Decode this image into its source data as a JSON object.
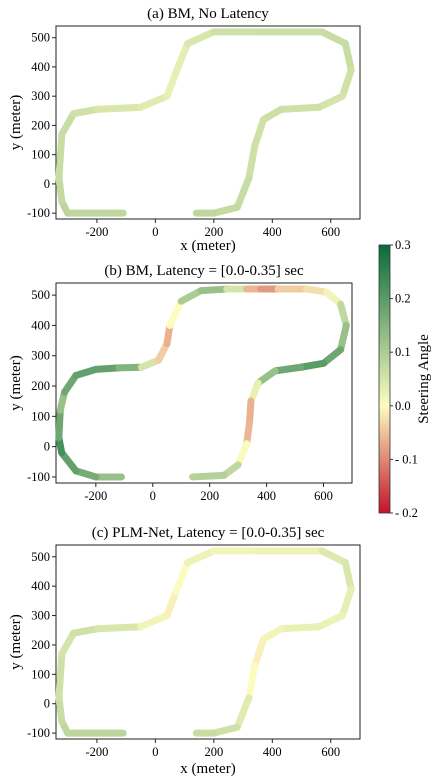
{
  "colors": {
    "high": "#0a6b3a",
    "mid": "#fdfcc0",
    "low": "#c0142a"
  },
  "chart_data": [
    {
      "type": "line",
      "title": "(a)  BM, No Latency",
      "xlabel": "x (meter)",
      "ylabel": "y (meter)",
      "xticks": [
        "-200",
        "0",
        "200",
        "400",
        "600"
      ],
      "yticks": [
        "-100",
        "0",
        "100",
        "200",
        "300",
        "400",
        "500"
      ],
      "xlim": [
        -340,
        700
      ],
      "ylim": [
        -120,
        540
      ],
      "series": [
        {
          "name": "",
          "points": [
            {
              "x": -110,
              "y": -100,
              "steer": 0.07
            },
            {
              "x": -300,
              "y": -100,
              "steer": 0.08
            },
            {
              "x": -320,
              "y": -60,
              "steer": 0.08
            },
            {
              "x": -330,
              "y": 20,
              "steer": 0.06
            },
            {
              "x": -320,
              "y": 170,
              "steer": 0.07
            },
            {
              "x": -280,
              "y": 240,
              "steer": 0.06
            },
            {
              "x": -200,
              "y": 255,
              "steer": 0.05
            },
            {
              "x": -50,
              "y": 262,
              "steer": 0.04
            },
            {
              "x": 40,
              "y": 300,
              "steer": 0.03
            },
            {
              "x": 70,
              "y": 380,
              "steer": 0.02
            },
            {
              "x": 110,
              "y": 480,
              "steer": 0.04
            },
            {
              "x": 200,
              "y": 520,
              "steer": 0.05
            },
            {
              "x": 350,
              "y": 520,
              "steer": 0.06
            },
            {
              "x": 570,
              "y": 520,
              "steer": 0.06
            },
            {
              "x": 650,
              "y": 480,
              "steer": 0.07
            },
            {
              "x": 670,
              "y": 390,
              "steer": 0.06
            },
            {
              "x": 640,
              "y": 300,
              "steer": 0.05
            },
            {
              "x": 560,
              "y": 262,
              "steer": 0.05
            },
            {
              "x": 430,
              "y": 255,
              "steer": 0.06
            },
            {
              "x": 370,
              "y": 220,
              "steer": 0.06
            },
            {
              "x": 340,
              "y": 130,
              "steer": 0.05
            },
            {
              "x": 320,
              "y": 20,
              "steer": 0.06
            },
            {
              "x": 280,
              "y": -80,
              "steer": 0.07
            },
            {
              "x": 200,
              "y": -100,
              "steer": 0.07
            },
            {
              "x": 140,
              "y": -100,
              "steer": 0.08
            }
          ]
        }
      ]
    },
    {
      "type": "line",
      "title": "(b)  BM, Latency = [0.0-0.35] sec",
      "xlabel": "x (meter)",
      "ylabel": "y (meter)",
      "xticks": [
        "-200",
        "0",
        "200",
        "400",
        "600"
      ],
      "yticks": [
        "-100",
        "0",
        "100",
        "200",
        "300",
        "400",
        "500"
      ],
      "xlim": [
        -340,
        700
      ],
      "ylim": [
        -120,
        540
      ],
      "series": [
        {
          "name": "",
          "points": [
            {
              "x": -110,
              "y": -100,
              "steer": 0.1
            },
            {
              "x": -200,
              "y": -100,
              "steer": 0.15
            },
            {
              "x": -270,
              "y": -80,
              "steer": 0.18
            },
            {
              "x": -320,
              "y": -20,
              "steer": 0.2
            },
            {
              "x": -330,
              "y": 30,
              "steer": 0.25
            },
            {
              "x": -325,
              "y": 120,
              "steer": 0.1
            },
            {
              "x": -310,
              "y": 180,
              "steer": 0.15
            },
            {
              "x": -270,
              "y": 235,
              "steer": 0.2
            },
            {
              "x": -200,
              "y": 255,
              "steer": 0.18
            },
            {
              "x": -120,
              "y": 260,
              "steer": 0.2
            },
            {
              "x": -40,
              "y": 262,
              "steer": 0.1
            },
            {
              "x": 20,
              "y": 285,
              "steer": 0.0
            },
            {
              "x": 50,
              "y": 340,
              "steer": -0.08
            },
            {
              "x": 60,
              "y": 400,
              "steer": -0.05
            },
            {
              "x": 100,
              "y": 480,
              "steer": 0.05
            },
            {
              "x": 170,
              "y": 515,
              "steer": 0.15
            },
            {
              "x": 260,
              "y": 520,
              "steer": 0.1
            },
            {
              "x": 330,
              "y": 520,
              "steer": 0.0
            },
            {
              "x": 380,
              "y": 520,
              "steer": -0.12
            },
            {
              "x": 440,
              "y": 520,
              "steer": -0.05
            },
            {
              "x": 540,
              "y": 520,
              "steer": -0.03
            },
            {
              "x": 610,
              "y": 510,
              "steer": -0.02
            },
            {
              "x": 660,
              "y": 470,
              "steer": 0.05
            },
            {
              "x": 680,
              "y": 400,
              "steer": 0.1
            },
            {
              "x": 660,
              "y": 320,
              "steer": 0.15
            },
            {
              "x": 600,
              "y": 275,
              "steer": 0.2
            },
            {
              "x": 520,
              "y": 262,
              "steer": 0.2
            },
            {
              "x": 430,
              "y": 250,
              "steer": 0.15
            },
            {
              "x": 370,
              "y": 210,
              "steer": 0.1
            },
            {
              "x": 345,
              "y": 150,
              "steer": -0.05
            },
            {
              "x": 340,
              "y": 80,
              "steer": -0.08
            },
            {
              "x": 330,
              "y": 10,
              "steer": -0.04
            },
            {
              "x": 300,
              "y": -60,
              "steer": 0.05
            },
            {
              "x": 250,
              "y": -95,
              "steer": 0.1
            },
            {
              "x": 140,
              "y": -100,
              "steer": 0.08
            }
          ]
        }
      ]
    },
    {
      "type": "line",
      "title": "(c)  PLM-Net, Latency = [0.0-0.35] sec",
      "xlabel": "x (meter)",
      "ylabel": "y (meter)",
      "xticks": [
        "-200",
        "0",
        "200",
        "400",
        "600"
      ],
      "yticks": [
        "-100",
        "0",
        "100",
        "200",
        "300",
        "400",
        "500"
      ],
      "xlim": [
        -340,
        700
      ],
      "ylim": [
        -120,
        540
      ],
      "series": [
        {
          "name": "",
          "points": [
            {
              "x": -110,
              "y": -100,
              "steer": 0.08
            },
            {
              "x": -300,
              "y": -100,
              "steer": 0.08
            },
            {
              "x": -320,
              "y": -60,
              "steer": 0.07
            },
            {
              "x": -330,
              "y": 20,
              "steer": 0.06
            },
            {
              "x": -320,
              "y": 170,
              "steer": 0.05
            },
            {
              "x": -280,
              "y": 240,
              "steer": 0.05
            },
            {
              "x": -200,
              "y": 255,
              "steer": 0.06
            },
            {
              "x": -50,
              "y": 262,
              "steer": 0.03
            },
            {
              "x": 40,
              "y": 300,
              "steer": 0.0
            },
            {
              "x": 70,
              "y": 380,
              "steer": -0.02
            },
            {
              "x": 110,
              "y": 480,
              "steer": 0.02
            },
            {
              "x": 200,
              "y": 520,
              "steer": 0.02
            },
            {
              "x": 350,
              "y": 520,
              "steer": 0.01
            },
            {
              "x": 570,
              "y": 520,
              "steer": 0.03
            },
            {
              "x": 650,
              "y": 480,
              "steer": 0.05
            },
            {
              "x": 670,
              "y": 390,
              "steer": 0.04
            },
            {
              "x": 640,
              "y": 300,
              "steer": 0.02
            },
            {
              "x": 560,
              "y": 262,
              "steer": 0.02
            },
            {
              "x": 430,
              "y": 255,
              "steer": 0.03
            },
            {
              "x": 370,
              "y": 220,
              "steer": 0.0
            },
            {
              "x": 340,
              "y": 130,
              "steer": -0.02
            },
            {
              "x": 320,
              "y": 20,
              "steer": 0.02
            },
            {
              "x": 280,
              "y": -80,
              "steer": 0.05
            },
            {
              "x": 200,
              "y": -100,
              "steer": 0.06
            },
            {
              "x": 140,
              "y": -100,
              "steer": 0.07
            }
          ]
        }
      ]
    }
  ],
  "colorbar": {
    "label": "Steering Angle",
    "range": [
      -0.2,
      0.3
    ],
    "ticks": [
      {
        "value": 0.3,
        "label": "0.3"
      },
      {
        "value": 0.2,
        "label": "0.2"
      },
      {
        "value": 0.1,
        "label": "0.1"
      },
      {
        "value": 0.0,
        "label": "0.0"
      },
      {
        "value": -0.1,
        "label": "- 0.1"
      },
      {
        "value": -0.2,
        "label": "- 0.2"
      }
    ]
  }
}
